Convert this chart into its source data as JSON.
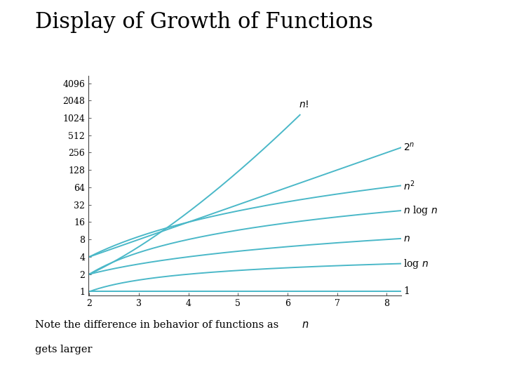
{
  "title": "Display of Growth of Functions",
  "background_color": "#ffffff",
  "line_color": "#4ab8c8",
  "x_min": 2,
  "x_max": 8.3,
  "y_min": 0.85,
  "y_max": 5500,
  "x_ticks": [
    2,
    3,
    4,
    5,
    6,
    7,
    8
  ],
  "y_tick_labels": [
    "1",
    "2",
    "4",
    "8",
    "16",
    "32",
    "64",
    "128",
    "256",
    "512",
    "1024",
    "2048",
    "4096"
  ],
  "y_tick_values": [
    1,
    2,
    4,
    8,
    16,
    32,
    64,
    128,
    256,
    512,
    1024,
    2048,
    4096
  ],
  "title_fontsize": 22,
  "axis_fontsize": 9,
  "label_fontsize": 10
}
